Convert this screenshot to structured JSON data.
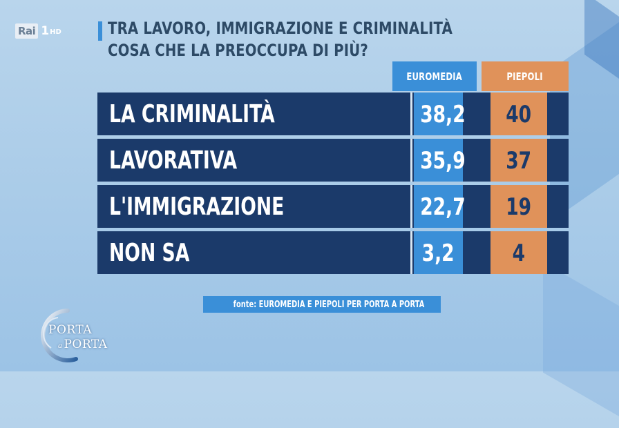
{
  "channel": {
    "brand": "Rai",
    "number": "1",
    "hd": "HD"
  },
  "title": {
    "line1": "TRA LAVORO, IMMIGRAZIONE E CRIMINALITÀ",
    "line2": "COSA CHE LA PREOCCUPA DI PIÙ?"
  },
  "chart_data": {
    "type": "table",
    "title": "TRA LAVORO, IMMIGRAZIONE E CRIMINALITÀ COSA CHE LA PREOCCUPA DI PIÙ?",
    "columns": [
      "EUROMEDIA",
      "PIEPOLI"
    ],
    "rows": [
      {
        "label": "LA CRIMINALITÀ",
        "euromedia": "38,2",
        "piepoli": "40"
      },
      {
        "label": "LAVORATIVA",
        "euromedia": "35,9",
        "piepoli": "37"
      },
      {
        "label": "L'IMMIGRAZIONE",
        "euromedia": "22,7",
        "piepoli": "19"
      },
      {
        "label": "NON SA",
        "euromedia": "3,2",
        "piepoli": "4"
      }
    ],
    "source": "fonte: EUROMEDIA E PIEPOLI PER PORTA A PORTA"
  },
  "show_logo": {
    "line1": "PORTA",
    "connector": "a",
    "line2": "PORTA"
  },
  "colors": {
    "euromedia": "#3a8fd8",
    "piepoli": "#e0925a",
    "row_bg": "#1b3a6a",
    "title_text": "#2d4a66"
  }
}
